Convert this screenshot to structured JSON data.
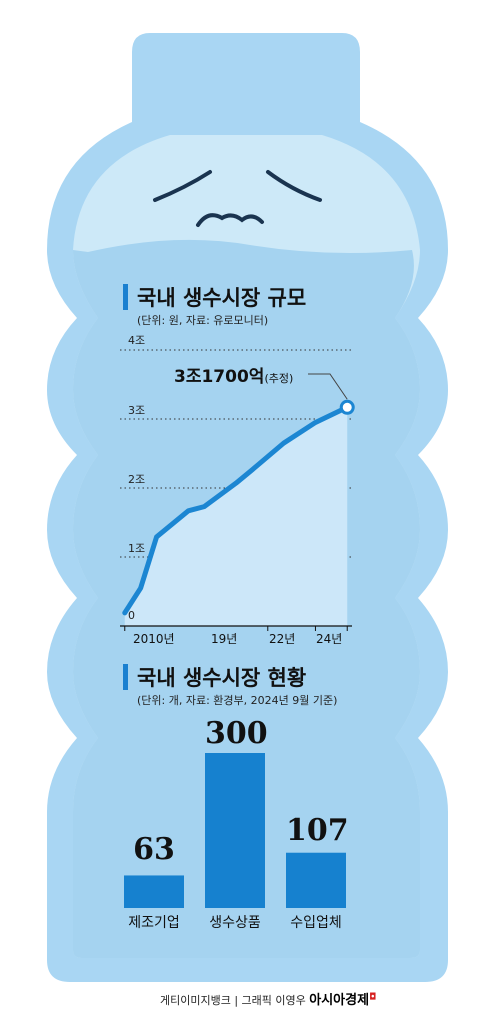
{
  "colors": {
    "bottle_outer": "#a9d6f3",
    "bottle_body": "#cde9f8",
    "water": "#a5d3f0",
    "line": "#1c86d2",
    "area": "#cce7f9",
    "bar": "#1681cf",
    "accent": "#1a80d0"
  },
  "credits": {
    "source_text": "게티이미지뱅크 | 그래픽 이영우",
    "brand": "아시아경제"
  },
  "chart_data": [
    {
      "type": "area",
      "title": "국내 생수시장 규모",
      "subtitle": "(단위: 원, 자료: 유로모니터)",
      "y_ticks": [
        "0",
        "1조",
        "2조",
        "3조",
        "4조"
      ],
      "ylim": [
        0,
        40000
      ],
      "x_ticks": [
        "2010년",
        "19년",
        "22년",
        "24년"
      ],
      "x_tick_years": [
        2010,
        2019,
        2022,
        2024
      ],
      "xlim": [
        2009.7,
        2024.3
      ],
      "points": [
        {
          "x": 2010,
          "y": 1900
        },
        {
          "x": 2011,
          "y": 5500
        },
        {
          "x": 2012,
          "y": 12900
        },
        {
          "x": 2014,
          "y": 16700
        },
        {
          "x": 2015,
          "y": 17300
        },
        {
          "x": 2017,
          "y": 20700
        },
        {
          "x": 2018,
          "y": 22600
        },
        {
          "x": 2020,
          "y": 26500
        },
        {
          "x": 2022,
          "y": 29500
        },
        {
          "x": 2024,
          "y": 31700
        }
      ],
      "annotation": {
        "value_label": "3조1700억",
        "note": "(추정)"
      },
      "grid": "dotted"
    },
    {
      "type": "bar",
      "title": "국내 생수시장 현황",
      "subtitle": "(단위: 개, 자료: 환경부, 2024년 9월 기준)",
      "categories": [
        "제조기업",
        "생수상품",
        "수입업체"
      ],
      "values": [
        63,
        300,
        107
      ]
    }
  ]
}
